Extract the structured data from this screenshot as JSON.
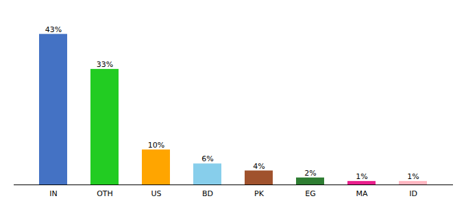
{
  "chart_data": {
    "type": "bar",
    "categories": [
      "IN",
      "OTH",
      "US",
      "BD",
      "PK",
      "EG",
      "MA",
      "ID"
    ],
    "values": [
      43,
      33,
      10,
      6,
      4,
      2,
      1,
      1
    ],
    "value_labels": [
      "43%",
      "33%",
      "10%",
      "6%",
      "4%",
      "2%",
      "1%",
      "1%"
    ],
    "colors": [
      "#4472C4",
      "#22CC22",
      "#FFA500",
      "#87CEEB",
      "#A0522D",
      "#2E7D32",
      "#E91E8C",
      "#FFB6C1"
    ],
    "ylim": [
      0,
      48
    ],
    "data_labels": true,
    "tick_labels": "x",
    "grid": false
  }
}
